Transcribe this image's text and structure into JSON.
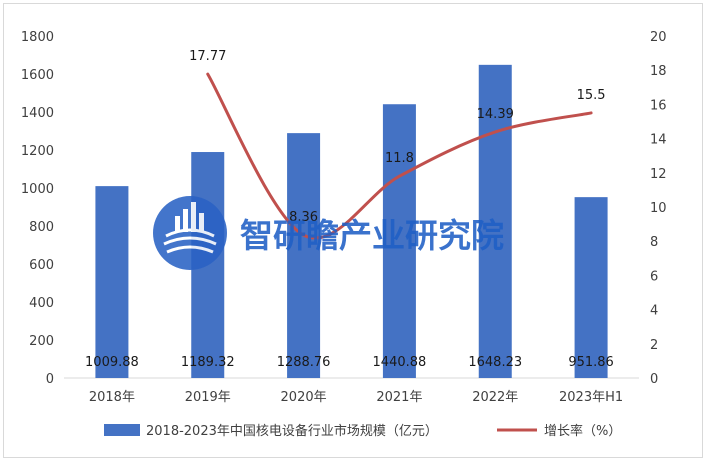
{
  "chart_data": {
    "type": "bar+line",
    "categories": [
      "2018年",
      "2019年",
      "2020年",
      "2021年",
      "2022年",
      "2023年H1"
    ],
    "series": [
      {
        "name": "2018-2023年中国核电设备行业市场规模（亿元）",
        "type": "bar",
        "axis": "left",
        "values": [
          1009.88,
          1189.32,
          1288.76,
          1440.88,
          1648.23,
          951.86
        ],
        "labels": [
          "1009.88",
          "1189.32",
          "1288.76",
          "1440.88",
          "1648.23",
          "951.86"
        ]
      },
      {
        "name": "增长率（%）",
        "type": "line",
        "axis": "right",
        "points": [
          {
            "category": "2019年",
            "value": 17.77,
            "label": "17.77"
          },
          {
            "category": "2020年",
            "value": 8.36,
            "label": "8.36"
          },
          {
            "category": "2021年",
            "value": 11.8,
            "label": "11.8"
          },
          {
            "category": "2022年",
            "value": 14.39,
            "label": "14.39"
          },
          {
            "category": "2023年H1",
            "value": 15.5,
            "label": "15.5"
          }
        ]
      }
    ],
    "left_axis": {
      "min": 0,
      "max": 1800,
      "ticks": [
        "0",
        "200",
        "400",
        "600",
        "800",
        "1000",
        "1200",
        "1400",
        "1600",
        "1800"
      ]
    },
    "right_axis": {
      "min": 0,
      "max": 20,
      "ticks": [
        "0",
        "2",
        "4",
        "6",
        "8",
        "10",
        "12",
        "14",
        "16",
        "18",
        "20"
      ]
    },
    "grid": false,
    "legend_position": "bottom",
    "colors": {
      "bar": "#4472c4",
      "line": "#c0504d",
      "axis": "#d9d9d9",
      "text": "#404040"
    }
  },
  "watermark": {
    "text": "智研瞻产业研究院",
    "color": "#1f5fc6",
    "logo_color": "#2a62c4"
  }
}
